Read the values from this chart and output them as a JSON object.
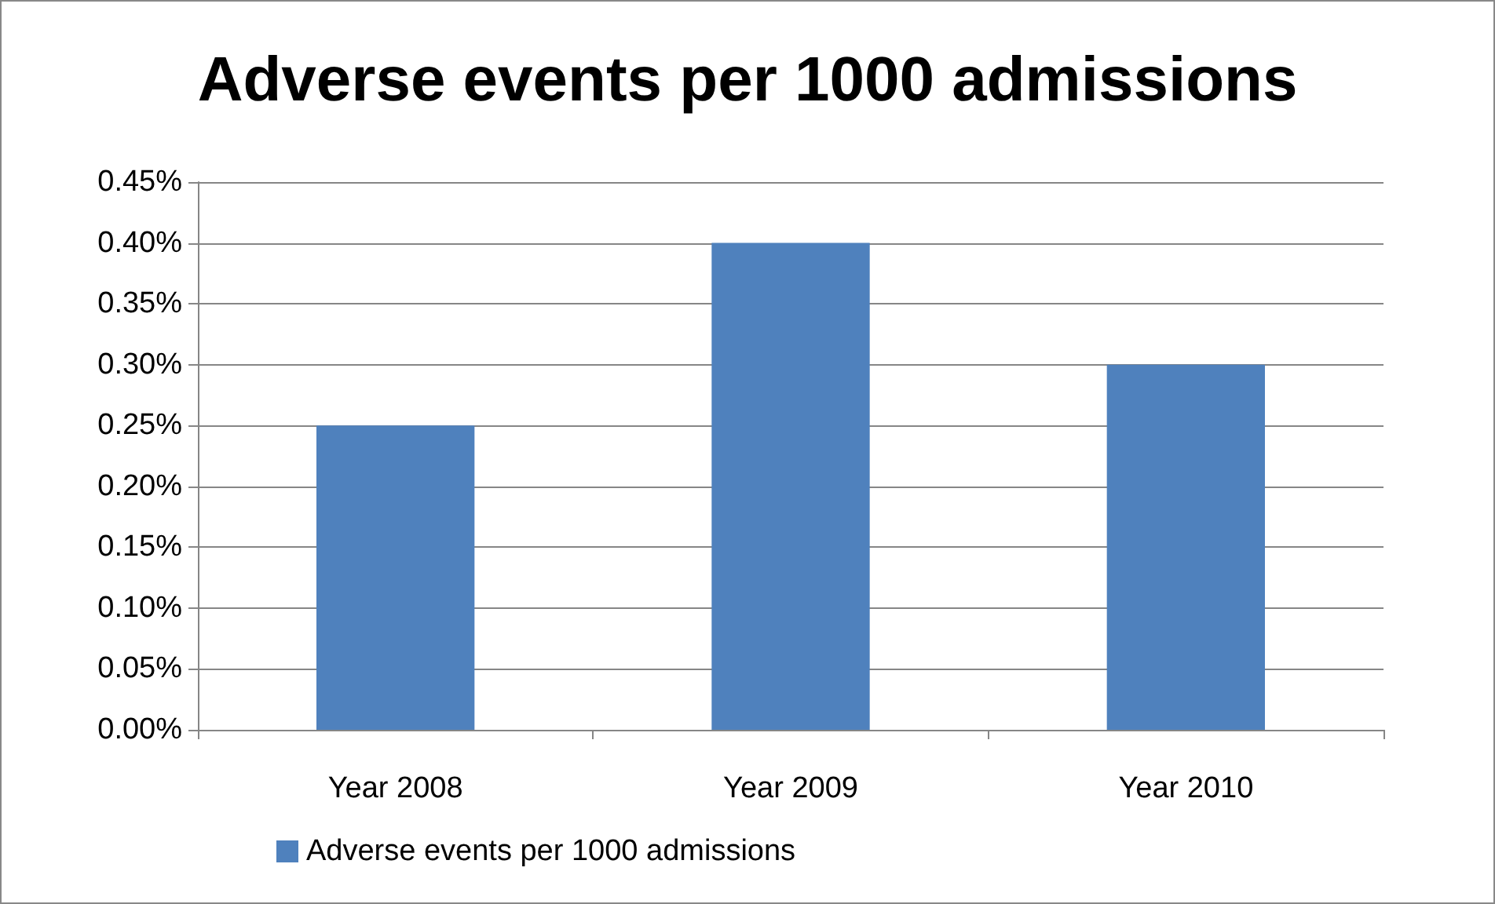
{
  "chart_data": {
    "type": "bar",
    "title": "Adverse events per 1000 admissions",
    "categories": [
      "Year 2008",
      "Year 2009",
      "Year 2010"
    ],
    "series": [
      {
        "name": "Adverse events per 1000 admissions",
        "color": "#4f81bd",
        "values": [
          0.25,
          0.4,
          0.3
        ]
      }
    ],
    "ylim": [
      0,
      0.45
    ],
    "yticks": [
      {
        "value": 0,
        "label": "0.00%"
      },
      {
        "value": 0.05,
        "label": "0.05%"
      },
      {
        "value": 0.1,
        "label": "0.10%"
      },
      {
        "value": 0.15,
        "label": "0.15%"
      },
      {
        "value": 0.2,
        "label": "0.20%"
      },
      {
        "value": 0.25,
        "label": "0.25%"
      },
      {
        "value": 0.3,
        "label": "0.30%"
      },
      {
        "value": 0.35,
        "label": "0.35%"
      },
      {
        "value": 0.4,
        "label": "0.40%"
      },
      {
        "value": 0.45,
        "label": "0.45%"
      }
    ],
    "grid": "y",
    "legend": "bottom"
  }
}
